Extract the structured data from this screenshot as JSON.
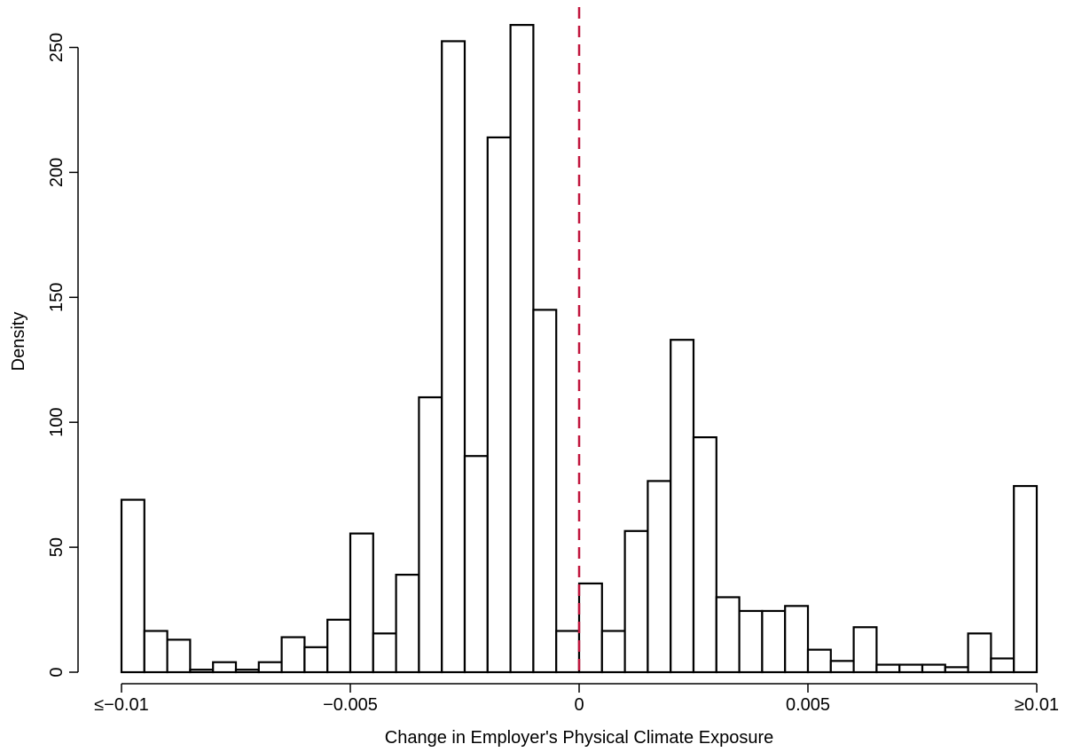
{
  "chart_data": {
    "type": "bar",
    "title": "",
    "xlabel": "Change in Employer's Physical Climate Exposure",
    "ylabel": "Density",
    "xlim": [
      -0.01,
      0.01
    ],
    "ylim": [
      0,
      260
    ],
    "bin_width": 0.0005,
    "bin_starts": [
      -0.01,
      -0.0095,
      -0.009,
      -0.0085,
      -0.008,
      -0.0075,
      -0.007,
      -0.0065,
      -0.006,
      -0.0055,
      -0.005,
      -0.0045,
      -0.004,
      -0.0035,
      -0.003,
      -0.0025,
      -0.002,
      -0.0015,
      -0.001,
      -0.0005,
      0.0,
      0.0005,
      0.001,
      0.0015,
      0.002,
      0.0025,
      0.003,
      0.0035,
      0.004,
      0.0045,
      0.005,
      0.0055,
      0.006,
      0.0065,
      0.007,
      0.0075,
      0.008,
      0.0085,
      0.009,
      0.0095
    ],
    "values": [
      69,
      16.5,
      13,
      1,
      4,
      1,
      4,
      14,
      10,
      21,
      55.5,
      15.5,
      39,
      110,
      252.5,
      86.5,
      214,
      259,
      145,
      16.5,
      35.5,
      16.5,
      56.5,
      76.5,
      133,
      94,
      30,
      24.5,
      24.5,
      26.5,
      9,
      4.5,
      18,
      3,
      3,
      3,
      2,
      15.5,
      5.5,
      74.5
    ],
    "x_ticks": [
      -0.01,
      -0.005,
      0,
      0.005,
      0.01
    ],
    "x_tick_labels": [
      "≤−0.01",
      "−0.005",
      "0",
      "0.005",
      "≥0.01"
    ],
    "y_ticks": [
      0,
      50,
      100,
      150,
      200,
      250
    ],
    "y_tick_labels": [
      "0",
      "50",
      "100",
      "150",
      "200",
      "250"
    ],
    "reference_line": {
      "x": 0,
      "style": "dashed",
      "color": "#c0143c"
    },
    "bar_fill": "#ffffff",
    "bar_stroke": "#000000",
    "grid": false
  }
}
